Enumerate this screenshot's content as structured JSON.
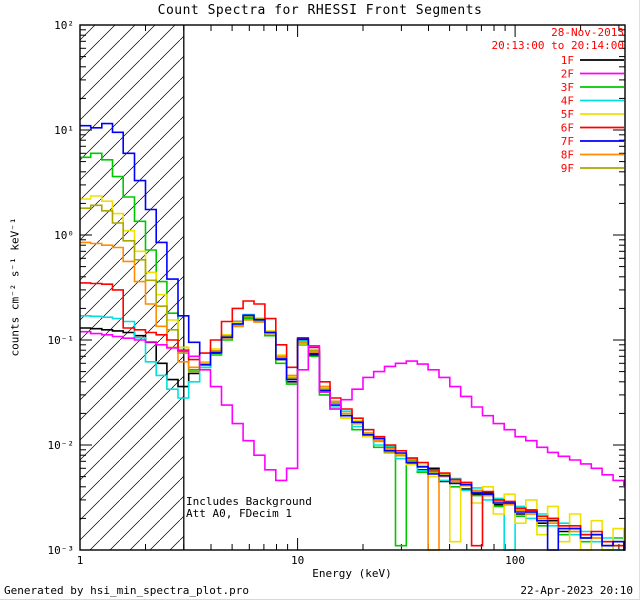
{
  "header": {
    "title": "Count Spectra for RHESSI Front Segments",
    "date": "28-Nov-2013",
    "time_range": "20:13:00 to 20:14:00"
  },
  "annotations": {
    "line1": "Includes Background",
    "line2": "Att A0, FDecim 1"
  },
  "footer": {
    "left": "Generated by hsi_min_spectra_plot.pro",
    "right": "22-Apr-2023 20:10"
  },
  "colors": {
    "annotation_red": "#ff0000",
    "axis": "#000000",
    "background": "#ffffff"
  },
  "chart_data": {
    "type": "line",
    "step": true,
    "title": "Count Spectra for RHESSI Front Segments",
    "xlabel": "Energy (keV)",
    "ylabel": "counts cm⁻² s⁻¹ keV⁻¹",
    "xscale": "log",
    "yscale": "log",
    "xlim": [
      1,
      320
    ],
    "ylim": [
      0.001,
      100
    ],
    "grid": false,
    "legend_position": "top-right",
    "hatch_region": {
      "xmin": 1,
      "xmax": 3
    },
    "x_ticks": [
      {
        "v": 1,
        "label": "1"
      },
      {
        "v": 10,
        "label": "10"
      },
      {
        "v": 100,
        "label": "100"
      }
    ],
    "y_ticks": [
      {
        "v": 100,
        "label": "10²"
      },
      {
        "v": 10,
        "label": "10¹"
      },
      {
        "v": 1,
        "label": "10⁰"
      },
      {
        "v": 0.1,
        "label": "10⁻¹"
      },
      {
        "v": 0.01,
        "label": "10⁻²"
      },
      {
        "v": 0.001,
        "label": "10⁻³"
      }
    ],
    "energies": [
      1.0,
      1.12,
      1.26,
      1.41,
      1.58,
      1.78,
      2.0,
      2.24,
      2.51,
      2.82,
      3.16,
      3.55,
      3.98,
      4.47,
      5.01,
      5.62,
      6.31,
      7.08,
      7.94,
      8.91,
      10.0,
      11.2,
      12.6,
      14.1,
      15.8,
      17.8,
      20.0,
      22.4,
      25.1,
      28.2,
      31.6,
      35.5,
      39.8,
      44.7,
      50.1,
      56.2,
      63.1,
      70.8,
      79.4,
      89.1,
      100,
      112,
      126,
      141,
      158,
      178,
      200,
      224,
      251,
      282,
      316
    ],
    "series": [
      {
        "name": "1F",
        "color": "#000000",
        "values": [
          0.13,
          0.128,
          0.125,
          0.122,
          0.118,
          0.11,
          0.095,
          0.06,
          0.042,
          0.036,
          0.048,
          0.055,
          0.075,
          0.105,
          0.15,
          0.165,
          0.155,
          0.115,
          0.065,
          0.04,
          0.1,
          0.072,
          0.032,
          0.026,
          0.018,
          0.016,
          0.012,
          0.011,
          0.0085,
          0.008,
          0.0066,
          0.0058,
          0.006,
          0.0045,
          0.0047,
          0.0038,
          0.0034,
          0.0035,
          0.0027,
          0.0028,
          0.0022,
          0.0024,
          0.0018,
          0.0019,
          0.0015,
          0.0016,
          0.0013,
          0.0014,
          0.0011,
          0.0012,
          0.001
        ]
      },
      {
        "name": "2F",
        "color": "#ff00ff",
        "values": [
          0.12,
          0.115,
          0.112,
          0.108,
          0.104,
          0.1,
          0.096,
          0.09,
          0.084,
          0.078,
          0.07,
          0.052,
          0.036,
          0.024,
          0.016,
          0.011,
          0.008,
          0.0058,
          0.0046,
          0.006,
          0.052,
          0.088,
          0.032,
          0.022,
          0.027,
          0.034,
          0.044,
          0.05,
          0.056,
          0.06,
          0.063,
          0.059,
          0.052,
          0.044,
          0.036,
          0.029,
          0.023,
          0.019,
          0.016,
          0.014,
          0.012,
          0.011,
          0.0095,
          0.0085,
          0.0078,
          0.0072,
          0.0066,
          0.006,
          0.0052,
          0.0046,
          0.004
        ]
      },
      {
        "name": "3F",
        "color": "#00c800",
        "values": [
          5.5,
          6.0,
          5.2,
          3.6,
          2.3,
          1.35,
          0.72,
          0.36,
          0.18,
          0.085,
          0.052,
          0.058,
          0.072,
          0.1,
          0.135,
          0.16,
          0.15,
          0.11,
          0.06,
          0.038,
          0.09,
          0.07,
          0.03,
          0.022,
          0.02,
          0.014,
          0.013,
          0.0095,
          0.0095,
          0.0011,
          0.0072,
          0.0055,
          0.0056,
          0.0052,
          0.004,
          0.0042,
          0.0033,
          0.0034,
          0.0026,
          0.0028,
          0.0021,
          0.0023,
          0.0017,
          0.002,
          0.0014,
          0.0016,
          0.0012,
          0.0014,
          0.001,
          0.0013,
          0.001
        ]
      },
      {
        "name": "4F",
        "color": "#00e0e0",
        "values": [
          0.17,
          0.168,
          0.165,
          0.16,
          0.15,
          0.105,
          0.062,
          0.046,
          0.034,
          0.028,
          0.04,
          0.055,
          0.078,
          0.108,
          0.14,
          0.175,
          0.158,
          0.118,
          0.068,
          0.044,
          0.098,
          0.08,
          0.036,
          0.023,
          0.021,
          0.015,
          0.014,
          0.01,
          0.0098,
          0.0074,
          0.0075,
          0.0057,
          0.0058,
          0.0046,
          0.0048,
          0.0037,
          0.0039,
          0.003,
          0.0031,
          0.001,
          0.0026,
          0.002,
          0.0022,
          0.0017,
          0.0018,
          0.0014,
          0.0015,
          0.0012,
          0.0013,
          0.001,
          0.0011
        ]
      },
      {
        "name": "5F",
        "color": "#f0e000",
        "values": [
          2.2,
          2.35,
          2.1,
          1.6,
          1.1,
          0.7,
          0.44,
          0.27,
          0.155,
          0.085,
          0.055,
          0.062,
          0.082,
          0.112,
          0.148,
          0.168,
          0.162,
          0.122,
          0.072,
          0.045,
          0.092,
          0.076,
          0.035,
          0.025,
          0.018,
          0.017,
          0.012,
          0.012,
          0.0086,
          0.0082,
          0.0065,
          0.0064,
          0.005,
          0.0053,
          0.0012,
          0.0044,
          0.0028,
          0.004,
          0.0022,
          0.0034,
          0.0018,
          0.003,
          0.0014,
          0.0026,
          0.0012,
          0.0022,
          0.001,
          0.0019,
          0.001,
          0.0016,
          0.001
        ]
      },
      {
        "name": "6F",
        "color": "#ff0000",
        "values": [
          0.35,
          0.345,
          0.34,
          0.3,
          0.13,
          0.125,
          0.118,
          0.112,
          0.1,
          0.08,
          0.065,
          0.075,
          0.1,
          0.15,
          0.2,
          0.235,
          0.22,
          0.16,
          0.09,
          0.055,
          0.105,
          0.085,
          0.04,
          0.028,
          0.022,
          0.018,
          0.014,
          0.012,
          0.01,
          0.0088,
          0.0075,
          0.0068,
          0.0058,
          0.0054,
          0.0047,
          0.0044,
          0.0011,
          0.0036,
          0.003,
          0.0029,
          0.0025,
          0.0024,
          0.0021,
          0.002,
          0.0017,
          0.0017,
          0.0014,
          0.0015,
          0.0012,
          0.0011,
          0.0011
        ]
      },
      {
        "name": "7F",
        "color": "#0000ff",
        "values": [
          11.0,
          10.5,
          11.5,
          9.5,
          6.0,
          3.3,
          1.75,
          0.85,
          0.38,
          0.17,
          0.095,
          0.058,
          0.076,
          0.106,
          0.142,
          0.172,
          0.156,
          0.118,
          0.066,
          0.042,
          0.102,
          0.074,
          0.033,
          0.024,
          0.019,
          0.0165,
          0.0125,
          0.0115,
          0.0088,
          0.0084,
          0.0068,
          0.0062,
          0.0053,
          0.0051,
          0.0043,
          0.0042,
          0.0035,
          0.0034,
          0.0028,
          0.0028,
          0.0023,
          0.0023,
          0.0019,
          0.001,
          0.0016,
          0.0016,
          0.0013,
          0.0014,
          0.0011,
          0.0012,
          0.001
        ]
      },
      {
        "name": "8F",
        "color": "#ff8c00",
        "values": [
          0.85,
          0.83,
          0.8,
          0.76,
          0.56,
          0.36,
          0.22,
          0.135,
          0.085,
          0.062,
          0.055,
          0.06,
          0.078,
          0.105,
          0.135,
          0.155,
          0.148,
          0.115,
          0.07,
          0.046,
          0.096,
          0.077,
          0.036,
          0.026,
          0.02,
          0.016,
          0.013,
          0.011,
          0.0092,
          0.008,
          0.007,
          0.0062,
          0.001,
          0.005,
          0.0045,
          0.0041,
          0.0037,
          0.0033,
          0.003,
          0.0027,
          0.0024,
          0.0022,
          0.002,
          0.0018,
          0.0017,
          0.0015,
          0.0014,
          0.0013,
          0.0012,
          0.0011,
          0.001
        ]
      },
      {
        "name": "9F",
        "color": "#a8a800",
        "values": [
          1.8,
          1.92,
          1.7,
          1.3,
          0.88,
          0.58,
          0.37,
          0.21,
          0.125,
          0.075,
          0.05,
          0.059,
          0.079,
          0.109,
          0.143,
          0.166,
          0.158,
          0.119,
          0.069,
          0.043,
          0.094,
          0.079,
          0.034,
          0.025,
          0.019,
          0.016,
          0.0128,
          0.0108,
          0.0089,
          0.0079,
          0.0068,
          0.0062,
          0.0054,
          0.005,
          0.0044,
          0.0041,
          0.0036,
          0.0033,
          0.0029,
          0.0027,
          0.0024,
          0.0022,
          0.0019,
          0.0018,
          0.0016,
          0.0015,
          0.0014,
          0.0013,
          0.0011,
          0.0011,
          0.001
        ]
      }
    ]
  }
}
